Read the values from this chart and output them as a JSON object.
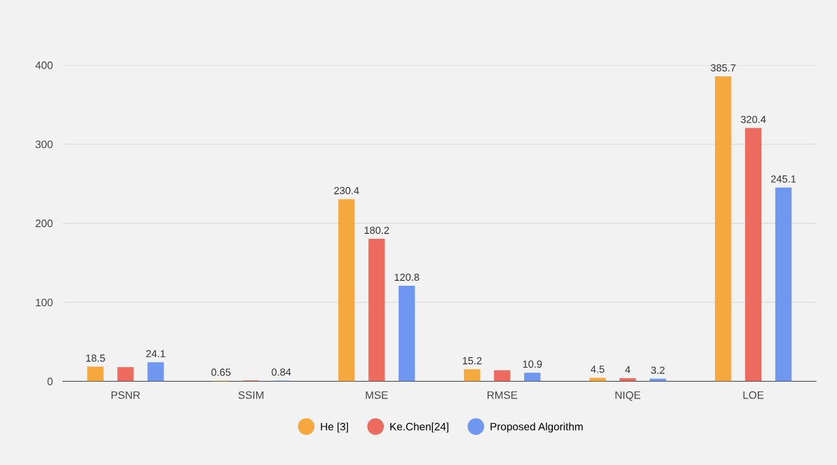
{
  "chart_data": {
    "type": "bar",
    "categories": [
      "PSNR",
      "SSIM",
      "MSE",
      "RMSE",
      "NIQE",
      "LOE"
    ],
    "series": [
      {
        "name": "He [3]",
        "color": "#f5a83e",
        "values": [
          18.5,
          0.65,
          230.4,
          15.2,
          4.5,
          385.7
        ],
        "value_labels": [
          "18.5",
          "0.65",
          "230.4",
          "15.2",
          "4.5",
          "385.7"
        ]
      },
      {
        "name": "Ke.Chen[24]",
        "color": "#ec6a5e",
        "values": [
          18,
          1,
          180.2,
          14,
          4,
          320.4
        ],
        "value_labels": [
          null,
          null,
          "180.2",
          null,
          "4",
          "320.4"
        ]
      },
      {
        "name": "Proposed Algorithm",
        "color": "#6f97ef",
        "values": [
          24.1,
          0.84,
          120.8,
          10.9,
          3.2,
          245.1
        ],
        "value_labels": [
          "24.1",
          "0.84",
          "120.8",
          "10.9",
          "3.2",
          "245.1"
        ]
      }
    ],
    "ylim": [
      0,
      400
    ],
    "yticks": [
      0,
      100,
      200,
      300,
      400
    ],
    "grid": "y",
    "legend": "bottom"
  }
}
